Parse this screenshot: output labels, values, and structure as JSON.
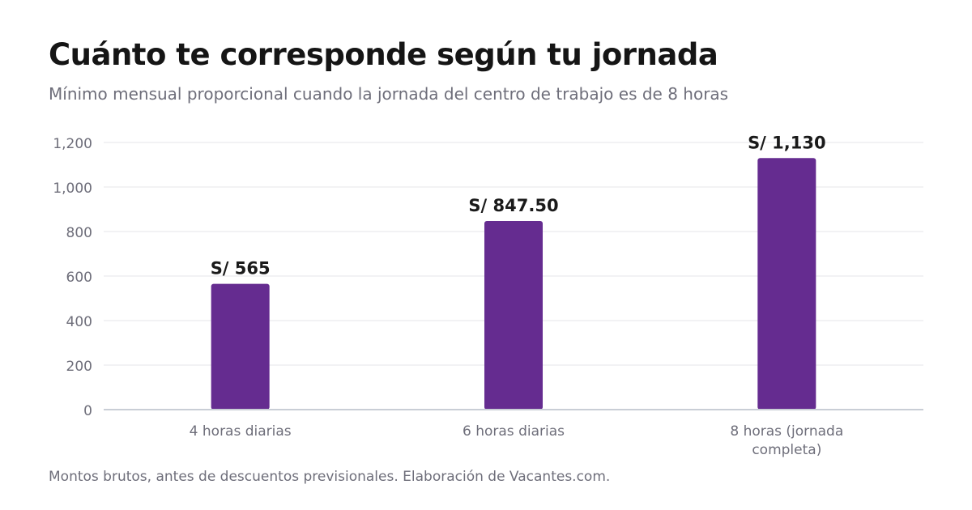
{
  "title": "Cuánto te corresponde según tu jornada",
  "subtitle": "Mínimo mensual proporcional cuando la jornada del centro de trabajo es de 8 horas",
  "footer": "Montos brutos, antes de descuentos previsionales. Elaboración de Vacantes.com.",
  "colors": {
    "bar": "#652c90",
    "grid": "#e6e6ea",
    "axis": "#c9ced6",
    "tick_text": "#6e6e7a",
    "data_label": "#1a1a1a"
  },
  "chart_data": {
    "type": "bar",
    "categories": [
      [
        "4 horas diarias"
      ],
      [
        "6 horas diarias"
      ],
      [
        "8 horas (jornada",
        "completa)"
      ]
    ],
    "values": [
      565,
      847.5,
      1130
    ],
    "data_labels": [
      "S/ 565",
      "S/ 847.50",
      "S/ 1,130"
    ],
    "yticks": [
      "0",
      "200",
      "400",
      "600",
      "800",
      "1,000",
      "1,200"
    ],
    "ytick_values": [
      0,
      200,
      400,
      600,
      800,
      1000,
      1200
    ],
    "ylim": [
      0,
      1200
    ],
    "grid": true,
    "xlabel": "",
    "ylabel": ""
  }
}
